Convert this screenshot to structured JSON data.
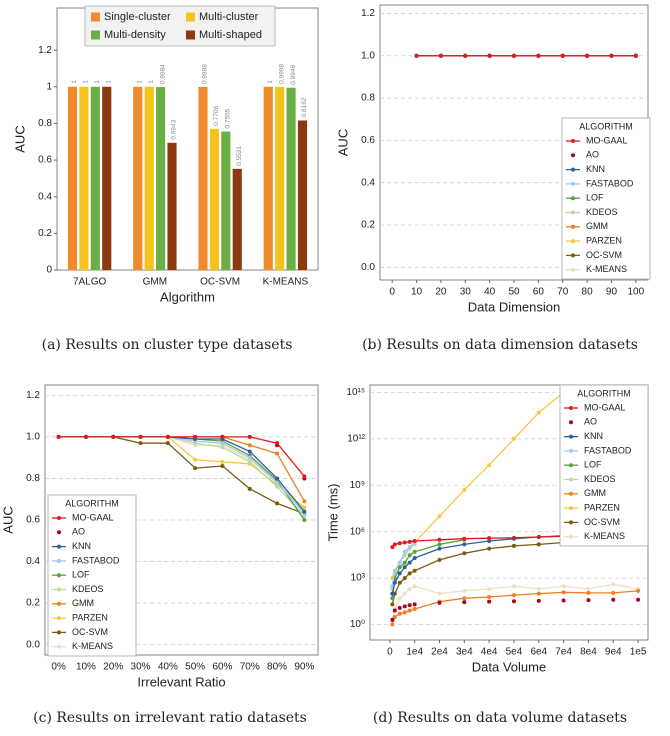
{
  "chart_data": [
    {
      "type": "bar",
      "caption": "(a)  Results on cluster type datasets",
      "xlabel": "Algorithm",
      "ylabel": "AUC",
      "categories": [
        "7ALGO",
        "GMM",
        "OC-SVM",
        "K-MEANS"
      ],
      "series": [
        {
          "name": "Single-cluster",
          "color": "#f08a2c",
          "values": [
            1,
            1,
            0.9988,
            1
          ]
        },
        {
          "name": "Multi-cluster",
          "color": "#f7c21b",
          "values": [
            1,
            1,
            0.7706,
            0.9998
          ]
        },
        {
          "name": "Multi-density",
          "color": "#6aae45",
          "values": [
            1,
            0.9984,
            0.7555,
            0.9946
          ]
        },
        {
          "name": "Multi-shaped",
          "color": "#8b3a0f",
          "values": [
            1,
            0.6943,
            0.5521,
            0.8162
          ]
        }
      ],
      "ylim": [
        0,
        1.43
      ],
      "yticks": [
        0,
        0.2,
        0.4,
        0.6,
        0.8,
        1,
        1.2
      ],
      "grid": false
    },
    {
      "type": "line",
      "caption": "(b)  Results on data dimension datasets",
      "xlabel": "Data Dimension",
      "ylabel": "AUC",
      "legend_title": "ALGORITHM",
      "x": [
        10,
        20,
        30,
        40,
        50,
        60,
        70,
        80,
        90,
        100
      ],
      "series": [
        {
          "name": "MO-GAAL",
          "color": "#e31a1c",
          "values": [
            1,
            1,
            1,
            1,
            1,
            1,
            1,
            1,
            1,
            1
          ]
        },
        {
          "name": "AO",
          "color": "#b00020",
          "values": [
            1,
            1,
            1,
            1,
            1,
            1,
            1,
            1,
            1,
            1
          ]
        },
        {
          "name": "KNN",
          "color": "#2c5f9e",
          "values": [
            1,
            1,
            1,
            1,
            1,
            1,
            1,
            1,
            1,
            1
          ]
        },
        {
          "name": "FASTABOD",
          "color": "#a6c8e8",
          "values": [
            1,
            1,
            1,
            1,
            1,
            1,
            1,
            1,
            1,
            1
          ]
        },
        {
          "name": "LOF",
          "color": "#5a9e3a",
          "values": [
            1,
            1,
            1,
            1,
            1,
            1,
            1,
            1,
            1,
            1
          ]
        },
        {
          "name": "KDEOS",
          "color": "#b8dba0",
          "values": [
            1,
            1,
            1,
            1,
            1,
            1,
            1,
            1,
            1,
            1
          ]
        },
        {
          "name": "GMM",
          "color": "#f07f20",
          "values": [
            1,
            1,
            1,
            1,
            1,
            1,
            1,
            1,
            1,
            1
          ]
        },
        {
          "name": "PARZEN",
          "color": "#f5c842",
          "values": [
            1,
            1,
            1,
            1,
            1,
            1,
            1,
            1,
            1,
            1
          ]
        },
        {
          "name": "OC-SVM",
          "color": "#7a5c10",
          "values": [
            1,
            1,
            1,
            1,
            1,
            1,
            1,
            1,
            1,
            1
          ]
        },
        {
          "name": "K-MEANS",
          "color": "#efdfc0",
          "values": [
            1,
            1,
            1,
            1,
            1,
            1,
            1,
            1,
            1,
            1
          ]
        }
      ],
      "xlim": [
        -5,
        105
      ],
      "xticks": [
        0,
        10,
        20,
        30,
        40,
        50,
        60,
        70,
        80,
        90,
        100
      ],
      "ylim": [
        -0.06,
        1.24
      ],
      "yticks": [
        {
          "value": 0,
          "label": "0.0"
        },
        0.2,
        0.4,
        0.6,
        0.8,
        {
          "value": 1,
          "label": "1.0"
        },
        1.2
      ],
      "grid": true
    },
    {
      "type": "line",
      "caption": "(c)  Results on irrelevant ratio datasets",
      "xlabel": "Irrelevant Ratio",
      "ylabel": "AUC",
      "legend_title": "ALGORITHM",
      "categories": [
        "0%",
        "10%",
        "20%",
        "30%",
        "40%",
        "50%",
        "60%",
        "70%",
        "80%",
        "90%"
      ],
      "series": [
        {
          "name": "MO-GAAL",
          "color": "#e31a1c",
          "values": [
            1,
            1,
            1,
            1,
            1,
            1,
            1,
            1,
            0.97,
            0.81
          ]
        },
        {
          "name": "AO",
          "color": "#b00020",
          "values": [
            1,
            1,
            1,
            1,
            1,
            1,
            1,
            1,
            0.96,
            0.8
          ]
        },
        {
          "name": "KNN",
          "color": "#2c5f9e",
          "values": [
            1,
            1,
            1,
            1,
            1,
            0.99,
            0.99,
            0.93,
            0.8,
            0.64
          ]
        },
        {
          "name": "FASTABOD",
          "color": "#a6c8e8",
          "values": [
            1,
            1,
            1,
            1,
            1,
            0.98,
            0.97,
            0.9,
            0.78,
            0.63
          ]
        },
        {
          "name": "LOF",
          "color": "#5a9e3a",
          "values": [
            1,
            1,
            1,
            1,
            1,
            0.99,
            0.98,
            0.91,
            0.79,
            0.6
          ]
        },
        {
          "name": "KDEOS",
          "color": "#b8dba0",
          "values": [
            1,
            1,
            1,
            1,
            1,
            0.97,
            0.95,
            0.88,
            0.76,
            0.62
          ]
        },
        {
          "name": "GMM",
          "color": "#f07f20",
          "values": [
            1,
            1,
            1,
            1,
            1,
            1,
            1,
            0.96,
            0.92,
            0.69
          ]
        },
        {
          "name": "PARZEN",
          "color": "#f5c842",
          "values": [
            1,
            1,
            1,
            1,
            1,
            0.89,
            0.88,
            0.87,
            0.77,
            0.66
          ]
        },
        {
          "name": "OC-SVM",
          "color": "#7a5c10",
          "values": [
            1,
            1,
            1,
            0.97,
            0.97,
            0.85,
            0.86,
            0.75,
            0.68,
            0.63
          ]
        },
        {
          "name": "K-MEANS",
          "color": "#efdfc0",
          "values": [
            1,
            1,
            1,
            1,
            1,
            0.96,
            0.96,
            0.89,
            0.78,
            0.65
          ]
        }
      ],
      "ylim": [
        -0.05,
        1.25
      ],
      "yticks": [
        {
          "value": 0,
          "label": "0.0"
        },
        0.2,
        0.4,
        0.6,
        0.8,
        {
          "value": 1,
          "label": "1.0"
        },
        1.2
      ],
      "grid": true
    },
    {
      "type": "line",
      "caption": "(d)  Results on data volume datasets",
      "xlabel": "Data Volume",
      "ylabel": "Time (ms)",
      "legend_title": "ALGORITHM",
      "log_y": true,
      "x": [
        1000,
        2000,
        4000,
        6000,
        8000,
        10000,
        20000,
        30000,
        40000,
        50000,
        60000,
        70000,
        80000,
        90000,
        100000
      ],
      "series": [
        {
          "name": "MO-GAAL",
          "color": "#e31a1c",
          "values": [
            100000,
            150000,
            180000,
            200000,
            220000,
            250000,
            300000,
            350000,
            380000,
            400000,
            450000,
            500000,
            500000,
            550000,
            600000
          ]
        },
        {
          "name": "AO",
          "color": "#b00020",
          "values": [
            2,
            8,
            12,
            15,
            18,
            20,
            25,
            28,
            30,
            32,
            34,
            36,
            38,
            40,
            40
          ]
        },
        {
          "name": "KNN",
          "color": "#2c5f9e",
          "values": [
            100,
            500,
            2000,
            5000,
            10000,
            20000,
            80000,
            150000,
            250000,
            350000,
            450000,
            550000,
            650000,
            750000,
            900000
          ]
        },
        {
          "name": "FASTABOD",
          "color": "#a6c8e8",
          "values": [
            300,
            3000,
            10000,
            50000,
            100000,
            200000,
            null,
            null,
            null,
            null,
            null,
            null,
            null,
            null,
            null
          ]
        },
        {
          "name": "LOF",
          "color": "#5a9e3a",
          "values": [
            50,
            1000,
            5000,
            10000,
            30000,
            50000,
            150000,
            300000,
            null,
            null,
            null,
            null,
            null,
            null,
            null
          ]
        },
        {
          "name": "KDEOS",
          "color": "#b8dba0",
          "values": [
            200,
            2000,
            10000,
            30000,
            80000,
            150000,
            null,
            null,
            null,
            null,
            null,
            null,
            null,
            null,
            null
          ]
        },
        {
          "name": "GMM",
          "color": "#f07f20",
          "values": [
            1,
            3,
            5,
            6,
            8,
            10,
            30,
            50,
            60,
            80,
            100,
            120,
            110,
            110,
            150
          ]
        },
        {
          "name": "PARZEN",
          "color": "#f5c842",
          "values": [
            1000,
            3000,
            10000,
            30000,
            80000,
            200000,
            10000000,
            500000000,
            20000000000,
            1000000000000,
            50000000000000,
            1000000000000000,
            null,
            null,
            null
          ]
        },
        {
          "name": "OC-SVM",
          "color": "#7a5c10",
          "values": [
            20,
            100,
            500,
            1000,
            2000,
            3000,
            15000,
            40000,
            80000,
            120000,
            150000,
            200000,
            250000,
            300000,
            350000
          ]
        },
        {
          "name": "K-MEANS",
          "color": "#efdfc0",
          "values": [
            2,
            10,
            50,
            100,
            200,
            300,
            100,
            150,
            200,
            300,
            200,
            300,
            200,
            400,
            200
          ]
        }
      ],
      "xlim": [
        -8000,
        104000
      ],
      "xticks": [
        0,
        {
          "value": 10000,
          "label": "1e4"
        },
        {
          "value": 20000,
          "label": "2e4"
        },
        {
          "value": 30000,
          "label": "3e4"
        },
        {
          "value": 40000,
          "label": "4e4"
        },
        {
          "value": 50000,
          "label": "5e4"
        },
        {
          "value": 60000,
          "label": "6e4"
        },
        {
          "value": 70000,
          "label": "7e4"
        },
        {
          "value": 80000,
          "label": "8e4"
        },
        {
          "value": 90000,
          "label": "9e4"
        },
        {
          "value": 100000,
          "label": "1e5"
        }
      ],
      "ylim": [
        0.1,
        3000000000000000
      ],
      "yticks": [
        {
          "value": 1,
          "label": "10⁰"
        },
        {
          "value": 1000,
          "label": "10³"
        },
        {
          "value": 1000000,
          "label": "10⁶"
        },
        {
          "value": 1000000000,
          "label": "10⁹"
        },
        {
          "value": 1000000000000,
          "label": "10¹²"
        },
        {
          "value": 1000000000000000,
          "label": "10¹⁵"
        }
      ],
      "grid": true
    }
  ]
}
